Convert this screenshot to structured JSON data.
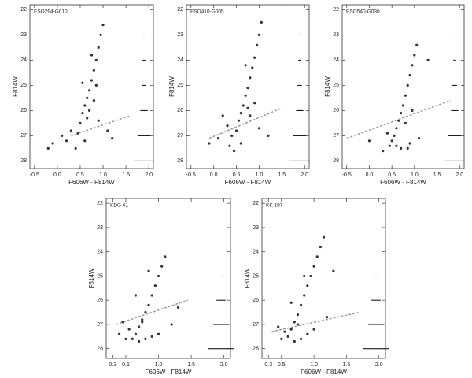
{
  "chart_data": [
    {
      "type": "scatter",
      "title": "ESO294-G010",
      "xlabel": "F606W - F814W",
      "ylabel": "F814W",
      "color": "#000000",
      "line_color": "#999999",
      "xlim": [
        -0.6,
        2.1
      ],
      "ylim": [
        28.3,
        21.8
      ],
      "xticks": [
        -0.5,
        {
          "value": 0,
          "label": "0.0"
        },
        0.5,
        {
          "value": 1,
          "label": "1.0"
        },
        1.5,
        {
          "value": 2,
          "label": "2.0"
        }
      ],
      "yticks": [
        22,
        23,
        24,
        25,
        26,
        27,
        28
      ],
      "x": [
        1.0,
        0.95,
        0.9,
        0.85,
        0.8,
        0.75,
        0.7,
        0.65,
        0.6,
        0.55,
        0.5,
        0.45,
        0.7,
        0.8,
        0.3,
        0.1,
        -0.1,
        -0.2,
        0.9,
        1.1,
        0.6,
        0.4,
        0.75,
        0.55,
        1.2,
        0.85,
        0.65,
        0.2
      ],
      "y": [
        22.6,
        23.0,
        23.5,
        24.0,
        24.4,
        24.8,
        25.2,
        25.5,
        25.8,
        26.1,
        26.5,
        26.9,
        26.0,
        25.6,
        26.8,
        27.0,
        27.3,
        27.5,
        26.4,
        26.8,
        27.2,
        27.5,
        23.8,
        24.9,
        27.1,
        25.0,
        26.3,
        27.2
      ],
      "line": {
        "x": [
          0.3,
          1.6
        ],
        "y": [
          27.0,
          26.2
        ]
      },
      "errors": {
        "y": [
          23,
          24,
          25,
          26,
          27,
          28
        ],
        "xerr": [
          0.02,
          0.03,
          0.05,
          0.08,
          0.14,
          0.22
        ]
      }
    },
    {
      "type": "scatter",
      "title": "ESO410-G005",
      "xlabel": "F606W - F814W",
      "ylabel": "F814W",
      "color": "#000000",
      "line_color": "#999999",
      "xlim": [
        -0.6,
        2.1
      ],
      "ylim": [
        28.3,
        21.8
      ],
      "xticks": [
        -0.5,
        {
          "value": 0,
          "label": "0.0"
        },
        0.5,
        {
          "value": 1,
          "label": "1.0"
        },
        1.5,
        {
          "value": 2,
          "label": "2.0"
        }
      ],
      "yticks": [
        22,
        23,
        24,
        25,
        26,
        27,
        28
      ],
      "x": [
        1.05,
        1.0,
        0.95,
        0.9,
        0.85,
        0.8,
        0.75,
        0.7,
        0.65,
        0.6,
        0.55,
        0.5,
        0.4,
        0.3,
        0.1,
        -0.1,
        0.8,
        1.0,
        0.6,
        0.45,
        0.7,
        1.2,
        0.2,
        0.9,
        0.35,
        0.75
      ],
      "y": [
        22.5,
        23.0,
        23.4,
        23.9,
        24.3,
        24.7,
        25.1,
        25.4,
        25.8,
        26.1,
        26.4,
        26.8,
        27.0,
        26.6,
        27.1,
        27.3,
        26.2,
        26.7,
        27.3,
        27.6,
        24.2,
        27.0,
        26.2,
        25.7,
        27.4,
        25.9
      ],
      "line": {
        "x": [
          -0.1,
          1.5
        ],
        "y": [
          27.1,
          25.9
        ]
      },
      "errors": {
        "y": [
          23,
          24,
          25,
          26,
          27,
          28
        ],
        "xerr": [
          0.02,
          0.03,
          0.05,
          0.08,
          0.14,
          0.22
        ]
      }
    },
    {
      "type": "scatter",
      "title": "ESO540-G030",
      "xlabel": "F606W - F814W",
      "ylabel": "F814W",
      "color": "#000000",
      "line_color": "#999999",
      "xlim": [
        -0.6,
        2.1
      ],
      "ylim": [
        28.3,
        21.8
      ],
      "xticks": [
        -0.5,
        {
          "value": 0,
          "label": "0.0"
        },
        0.5,
        {
          "value": 1,
          "label": "1.0"
        },
        1.5,
        {
          "value": 2,
          "label": "2.0"
        }
      ],
      "yticks": [
        22,
        23,
        24,
        25,
        26,
        27,
        28
      ],
      "x": [
        1.05,
        1.0,
        0.95,
        0.9,
        0.85,
        0.8,
        0.75,
        0.7,
        0.65,
        0.6,
        0.55,
        0.5,
        0.45,
        0.7,
        0.9,
        1.1,
        0.4,
        0.6,
        0.8,
        0.3,
        1.3,
        0.0,
        0.85,
        0.95
      ],
      "y": [
        23.4,
        23.8,
        24.2,
        24.6,
        25.0,
        25.4,
        25.8,
        26.1,
        26.4,
        26.7,
        27.0,
        27.2,
        27.4,
        27.5,
        27.3,
        27.1,
        26.9,
        27.4,
        26.5,
        27.6,
        24.0,
        27.2,
        27.5,
        26.0
      ],
      "line": {
        "x": [
          -0.5,
          1.8
        ],
        "y": [
          27.1,
          25.6
        ]
      },
      "errors": {
        "y": [
          23,
          24,
          25,
          26,
          27,
          28
        ],
        "xerr": [
          0.02,
          0.03,
          0.05,
          0.08,
          0.14,
          0.22
        ]
      }
    },
    {
      "type": "scatter",
      "title": "KDG 61",
      "xlabel": "F606W - F814W",
      "ylabel": "F814W",
      "color": "#000000",
      "line_color": "#999999",
      "xlim": [
        0.2,
        2.1
      ],
      "ylim": [
        28.4,
        21.8
      ],
      "xticks": [
        0.3,
        0.5,
        {
          "value": 1,
          "label": "1.0"
        },
        1.5,
        {
          "value": 2,
          "label": "2.0"
        }
      ],
      "yticks": [
        22,
        23,
        24,
        25,
        26,
        27,
        28
      ],
      "x": [
        1.1,
        1.05,
        1.0,
        0.95,
        0.9,
        0.85,
        0.8,
        0.75,
        0.7,
        0.65,
        0.6,
        0.7,
        0.8,
        0.9,
        1.0,
        0.55,
        0.45,
        0.4,
        1.2,
        0.65,
        0.85,
        1.3,
        0.5,
        0.75
      ],
      "y": [
        24.2,
        24.6,
        25.0,
        25.4,
        25.8,
        26.2,
        26.5,
        26.8,
        27.1,
        27.4,
        27.6,
        27.7,
        27.6,
        27.5,
        27.4,
        27.2,
        26.9,
        27.4,
        27.0,
        25.8,
        24.8,
        26.3,
        27.6,
        26.9
      ],
      "line": {
        "x": [
          0.35,
          1.45
        ],
        "y": [
          27.0,
          26.0
        ]
      },
      "errors": {
        "y": [
          25,
          26,
          27,
          28
        ],
        "xerr": [
          0.04,
          0.07,
          0.12,
          0.2
        ]
      }
    },
    {
      "type": "scatter",
      "title": "KK 197",
      "xlabel": "F606W - F814W",
      "ylabel": "F814W",
      "color": "#000000",
      "line_color": "#999999",
      "xlim": [
        0.2,
        2.1
      ],
      "ylim": [
        28.4,
        21.8
      ],
      "xticks": [
        0.3,
        0.5,
        {
          "value": 1,
          "label": "1.0"
        },
        1.5,
        {
          "value": 2,
          "label": "2.0"
        }
      ],
      "yticks": [
        22,
        23,
        24,
        25,
        26,
        27,
        28
      ],
      "x": [
        1.15,
        1.1,
        1.05,
        1.0,
        0.95,
        0.9,
        0.85,
        0.8,
        0.75,
        0.7,
        0.65,
        0.6,
        0.7,
        0.8,
        0.9,
        0.55,
        0.5,
        1.2,
        1.3,
        0.65,
        0.85,
        1.0,
        0.45,
        0.75
      ],
      "y": [
        23.4,
        23.8,
        24.2,
        24.6,
        25.0,
        25.4,
        25.8,
        26.2,
        26.6,
        26.9,
        27.2,
        27.5,
        27.7,
        27.6,
        27.4,
        27.3,
        27.6,
        26.7,
        24.8,
        26.1,
        25.0,
        27.2,
        27.1,
        27.0
      ],
      "line": {
        "x": [
          0.35,
          1.7
        ],
        "y": [
          27.3,
          26.5
        ]
      },
      "errors": {
        "y": [
          25,
          26,
          27,
          28
        ],
        "xerr": [
          0.04,
          0.07,
          0.12,
          0.2
        ]
      }
    }
  ]
}
